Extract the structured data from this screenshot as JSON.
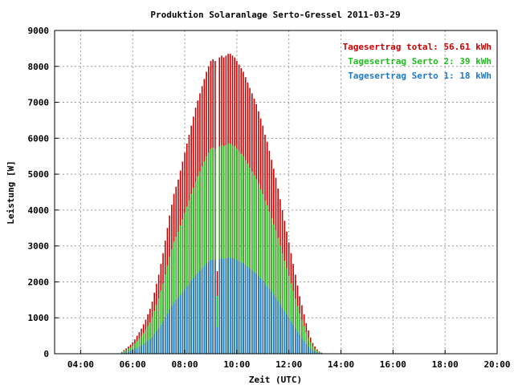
{
  "chart_data": {
    "type": "bar",
    "title": "Produktion Solaranlage Serto-Gressel 2011-03-29",
    "xlabel": "Zeit (UTC)",
    "ylabel": "Leistung [W]",
    "xlim": [
      3.0,
      20.0
    ],
    "ylim": [
      0,
      9000
    ],
    "x_ticks": [
      "04:00",
      "06:00",
      "08:00",
      "10:00",
      "12:00",
      "14:00",
      "16:00",
      "18:00",
      "20:00"
    ],
    "y_ticks": [
      "0",
      "1000",
      "2000",
      "3000",
      "4000",
      "5000",
      "6000",
      "7000",
      "8000",
      "9000"
    ],
    "grid": true,
    "legend_position": "top-right",
    "interval_minutes": 5,
    "start_time": "05:35",
    "series": [
      {
        "name": "total",
        "label": "Tagesertrag total: 56.61 kWh",
        "color": "#cc0000",
        "values": [
          50,
          100,
          150,
          200,
          250,
          320,
          400,
          500,
          600,
          700,
          820,
          950,
          1100,
          1250,
          1450,
          1700,
          1950,
          2200,
          2500,
          2800,
          3150,
          3500,
          3850,
          4150,
          4450,
          4650,
          4850,
          5100,
          5350,
          5600,
          5850,
          6100,
          6350,
          6600,
          6850,
          7050,
          7250,
          7450,
          7650,
          7850,
          8000,
          8150,
          8200,
          8150,
          2300,
          8250,
          8300,
          8250,
          8300,
          8350,
          8350,
          8300,
          8250,
          8150,
          8050,
          7950,
          7850,
          7700,
          7550,
          7400,
          7250,
          7100,
          6950,
          6750,
          6550,
          6350,
          6100,
          5900,
          5650,
          5400,
          5150,
          4900,
          4600,
          4300,
          4000,
          3700,
          3400,
          3100,
          2800,
          2500,
          2200,
          1900,
          1600,
          1350,
          1100,
          850,
          650,
          450,
          300,
          200,
          120,
          60,
          30
        ]
      },
      {
        "name": "serto2",
        "label": "Tagesertrag Serto 2: 39 kWh",
        "color": "#22bb22",
        "values": [
          35,
          70,
          105,
          140,
          175,
          225,
          280,
          350,
          420,
          490,
          575,
          665,
          770,
          875,
          1015,
          1190,
          1365,
          1540,
          1750,
          1960,
          2205,
          2450,
          2695,
          2905,
          3115,
          3255,
          3395,
          3570,
          3745,
          3920,
          4095,
          4270,
          4445,
          4620,
          4795,
          4935,
          5075,
          5215,
          5355,
          5495,
          5600,
          5705,
          5740,
          5705,
          1610,
          5775,
          5810,
          5775,
          5810,
          5845,
          5845,
          5810,
          5775,
          5705,
          5635,
          5565,
          5495,
          5390,
          5285,
          5180,
          5075,
          4970,
          4865,
          4725,
          4585,
          4445,
          4270,
          4130,
          3955,
          3780,
          3605,
          3430,
          3220,
          3010,
          2800,
          2590,
          2380,
          2170,
          1960,
          1750,
          1540,
          1330,
          1120,
          945,
          770,
          595,
          455,
          315,
          210,
          140,
          84,
          42,
          21
        ]
      },
      {
        "name": "serto1",
        "label": "Tagesertrag Serto 1: 18 kWh",
        "color": "#1e78c8",
        "values": [
          16,
          32,
          48,
          64,
          80,
          102,
          128,
          160,
          192,
          224,
          262,
          304,
          352,
          400,
          464,
          544,
          624,
          704,
          800,
          896,
          1008,
          1120,
          1232,
          1328,
          1424,
          1488,
          1552,
          1632,
          1712,
          1792,
          1872,
          1952,
          2032,
          2112,
          2192,
          2256,
          2320,
          2384,
          2448,
          2512,
          2560,
          2608,
          2624,
          2608,
          736,
          2640,
          2656,
          2640,
          2656,
          2672,
          2672,
          2656,
          2640,
          2608,
          2576,
          2544,
          2512,
          2464,
          2416,
          2368,
          2320,
          2272,
          2224,
          2160,
          2096,
          2032,
          1952,
          1888,
          1808,
          1728,
          1648,
          1568,
          1472,
          1376,
          1280,
          1184,
          1088,
          992,
          896,
          800,
          704,
          608,
          512,
          432,
          352,
          272,
          208,
          144,
          96,
          64,
          38,
          19,
          10
        ]
      }
    ]
  }
}
